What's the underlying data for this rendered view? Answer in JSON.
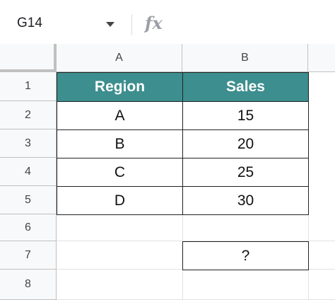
{
  "name_box": {
    "value": "G14"
  },
  "formula_bar": {
    "fx_label": "fx",
    "value": ""
  },
  "columns": [
    "A",
    "B"
  ],
  "rows": [
    "1",
    "2",
    "3",
    "4",
    "5",
    "6",
    "7",
    "8"
  ],
  "table": {
    "headers": [
      "Region",
      "Sales"
    ],
    "rows": [
      [
        "A",
        "15"
      ],
      [
        "B",
        "20"
      ],
      [
        "C",
        "25"
      ],
      [
        "D",
        "30"
      ]
    ]
  },
  "answer_cell": {
    "value": "?"
  },
  "colors": {
    "header_fill": "#3d8e8e",
    "header_text": "#ffffff",
    "border": "#222222"
  }
}
